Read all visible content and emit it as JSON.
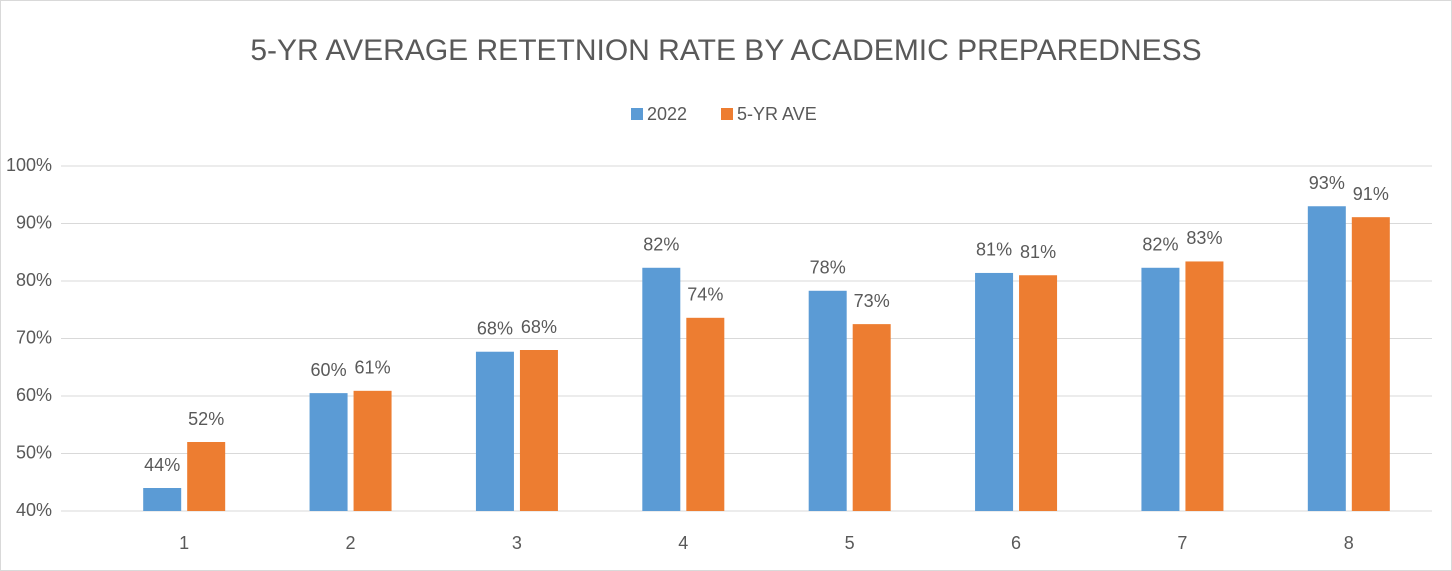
{
  "chart_data": {
    "type": "bar",
    "title": "5-YR AVERAGE RETETNION RATE BY ACADEMIC PREPAREDNESS",
    "categories": [
      "1",
      "2",
      "3",
      "4",
      "5",
      "6",
      "7",
      "8"
    ],
    "series": [
      {
        "name": "2022",
        "color": "#5b9bd5",
        "values": [
          44.0,
          60.5,
          67.7,
          82.3,
          78.3,
          81.4,
          82.3,
          93.0
        ],
        "value_labels": [
          "44%",
          "60%",
          "68%",
          "82%",
          "78%",
          "81%",
          "82%",
          "93%"
        ]
      },
      {
        "name": "5-YR AVE",
        "color": "#ed7d31",
        "values": [
          52.0,
          60.9,
          68.0,
          73.6,
          72.5,
          81.0,
          83.4,
          91.1
        ],
        "value_labels": [
          "52%",
          "61%",
          "68%",
          "74%",
          "73%",
          "81%",
          "83%",
          "91%"
        ]
      }
    ],
    "ylim": [
      40,
      100
    ],
    "yticks": [
      {
        "value": 40,
        "label": "40%"
      },
      {
        "value": 50,
        "label": "50%"
      },
      {
        "value": 60,
        "label": "60%"
      },
      {
        "value": 70,
        "label": "70%"
      },
      {
        "value": 80,
        "label": "80%"
      },
      {
        "value": 90,
        "label": "90%"
      },
      {
        "value": 100,
        "label": "100%"
      }
    ],
    "grid": true,
    "legend": "top"
  }
}
